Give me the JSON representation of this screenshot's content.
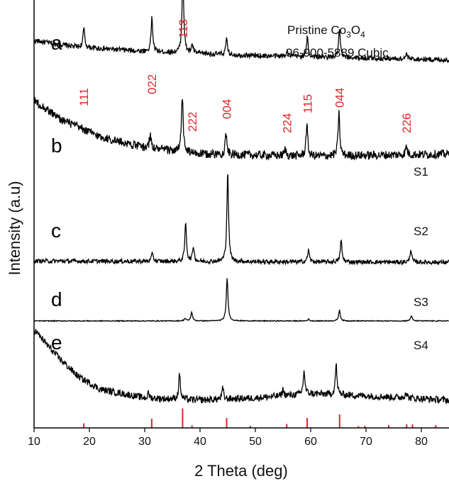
{
  "chart_data": {
    "type": "line",
    "title": "",
    "xlabel": "2 Theta (deg)",
    "ylabel": "Intensity (a.u)",
    "xlim": [
      10,
      85
    ],
    "xticks": [
      10,
      20,
      30,
      40,
      50,
      60,
      70,
      80
    ],
    "legend": {
      "line1_prefix": "Pristine Co",
      "sub1": "3",
      "mid": "O",
      "sub2": "4",
      "line2": "96-900-5889 Cubic"
    },
    "colors": {
      "trace": "#000000",
      "reference": "#e0262b",
      "hkl": "#e0262b"
    },
    "hkl_labels": [
      {
        "label": "111",
        "x": 19.0
      },
      {
        "label": "022",
        "x": 31.3
      },
      {
        "label": "113",
        "x": 36.9
      },
      {
        "label": "222",
        "x": 38.6
      },
      {
        "label": "004",
        "x": 44.8
      },
      {
        "label": "224",
        "x": 55.7
      },
      {
        "label": "115",
        "x": 59.4
      },
      {
        "label": "044",
        "x": 65.2
      },
      {
        "label": "226",
        "x": 77.3
      }
    ],
    "series": [
      {
        "panel": "a",
        "label": "",
        "offset": 0.86,
        "baseline": [
          [
            10,
            0.045
          ],
          [
            18,
            0.03
          ],
          [
            30,
            0.02
          ],
          [
            50,
            0.01
          ],
          [
            85,
            0.0
          ]
        ],
        "peaks": [
          [
            19.0,
            0.045
          ],
          [
            31.3,
            0.08
          ],
          [
            36.9,
            0.185
          ],
          [
            38.6,
            0.02
          ],
          [
            44.8,
            0.035
          ],
          [
            55.7,
            0.015
          ],
          [
            59.4,
            0.045
          ],
          [
            65.2,
            0.065
          ],
          [
            77.3,
            0.012
          ]
        ],
        "noise": 0.006
      },
      {
        "panel": "b",
        "label": "S1",
        "offset": 0.62,
        "baseline": [
          [
            10,
            0.145
          ],
          [
            15,
            0.1
          ],
          [
            22,
            0.06
          ],
          [
            30,
            0.035
          ],
          [
            40,
            0.02
          ],
          [
            60,
            0.015
          ],
          [
            85,
            0.02
          ]
        ],
        "peaks": [
          [
            31.0,
            0.035
          ],
          [
            36.8,
            0.13
          ],
          [
            44.7,
            0.05
          ],
          [
            55.4,
            0.015
          ],
          [
            59.3,
            0.075
          ],
          [
            65.1,
            0.1
          ],
          [
            77.3,
            0.02
          ]
        ],
        "noise": 0.01
      },
      {
        "panel": "c",
        "label": "S2",
        "offset": 0.375,
        "baseline": [
          [
            10,
            0.015
          ],
          [
            85,
            0.012
          ]
        ],
        "peaks": [
          [
            31.4,
            0.02
          ],
          [
            37.4,
            0.09
          ],
          [
            38.8,
            0.035
          ],
          [
            45.0,
            0.21
          ],
          [
            59.6,
            0.028
          ],
          [
            65.5,
            0.05
          ],
          [
            78.1,
            0.03
          ]
        ],
        "noise": 0.005
      },
      {
        "panel": "d",
        "label": "S3",
        "offset": 0.25,
        "baseline": [
          [
            10,
            0.0
          ],
          [
            85,
            0.0
          ]
        ],
        "peaks": [
          [
            37.3,
            0.006
          ],
          [
            38.5,
            0.02
          ],
          [
            44.9,
            0.1
          ],
          [
            59.6,
            0.004
          ],
          [
            65.2,
            0.025
          ],
          [
            78.2,
            0.012
          ]
        ],
        "noise": 0.001
      },
      {
        "panel": "e",
        "label": "S4",
        "offset": 0.05,
        "baseline": [
          [
            10,
            0.18
          ],
          [
            14,
            0.12
          ],
          [
            18,
            0.07
          ],
          [
            22,
            0.04
          ],
          [
            30,
            0.02
          ],
          [
            40,
            0.015
          ],
          [
            50,
            0.02
          ],
          [
            60,
            0.03
          ],
          [
            70,
            0.025
          ],
          [
            85,
            0.015
          ]
        ],
        "peaks": [
          [
            30.7,
            0.012
          ],
          [
            36.3,
            0.06
          ],
          [
            44.1,
            0.025
          ],
          [
            55.0,
            0.015
          ],
          [
            58.8,
            0.055
          ],
          [
            64.6,
            0.07
          ],
          [
            77.2,
            0.015
          ]
        ],
        "noise": 0.008
      }
    ],
    "reference_sticks": [
      [
        18.99,
        0.13
      ],
      [
        31.27,
        0.26
      ],
      [
        36.85,
        0.55
      ],
      [
        38.55,
        0.07
      ],
      [
        44.81,
        0.28
      ],
      [
        49.1,
        0.06
      ],
      [
        55.66,
        0.11
      ],
      [
        59.36,
        0.28
      ],
      [
        65.23,
        0.38
      ],
      [
        68.63,
        0.05
      ],
      [
        69.8,
        0.06
      ],
      [
        74.1,
        0.08
      ],
      [
        77.34,
        0.1
      ],
      [
        78.4,
        0.1
      ],
      [
        82.6,
        0.08
      ]
    ]
  }
}
